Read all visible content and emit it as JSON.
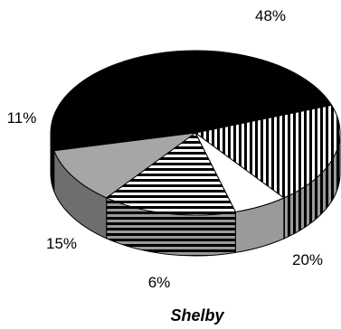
{
  "chart_data": {
    "type": "pie",
    "three_d": true,
    "title": "Shelby",
    "slices": [
      {
        "value": 48,
        "label": "48%",
        "color": "#000000",
        "pattern": "solid"
      },
      {
        "value": 20,
        "label": "20%",
        "color": "#000000",
        "pattern": "vertical-stripes"
      },
      {
        "value": 6,
        "label": "6%",
        "color": "#ffffff",
        "pattern": "solid"
      },
      {
        "value": 15,
        "label": "15%",
        "color": "#000000",
        "pattern": "horizontal-stripes"
      },
      {
        "value": 11,
        "label": "11%",
        "color": "#a6a6a6",
        "pattern": "solid"
      }
    ],
    "legend": "none"
  }
}
